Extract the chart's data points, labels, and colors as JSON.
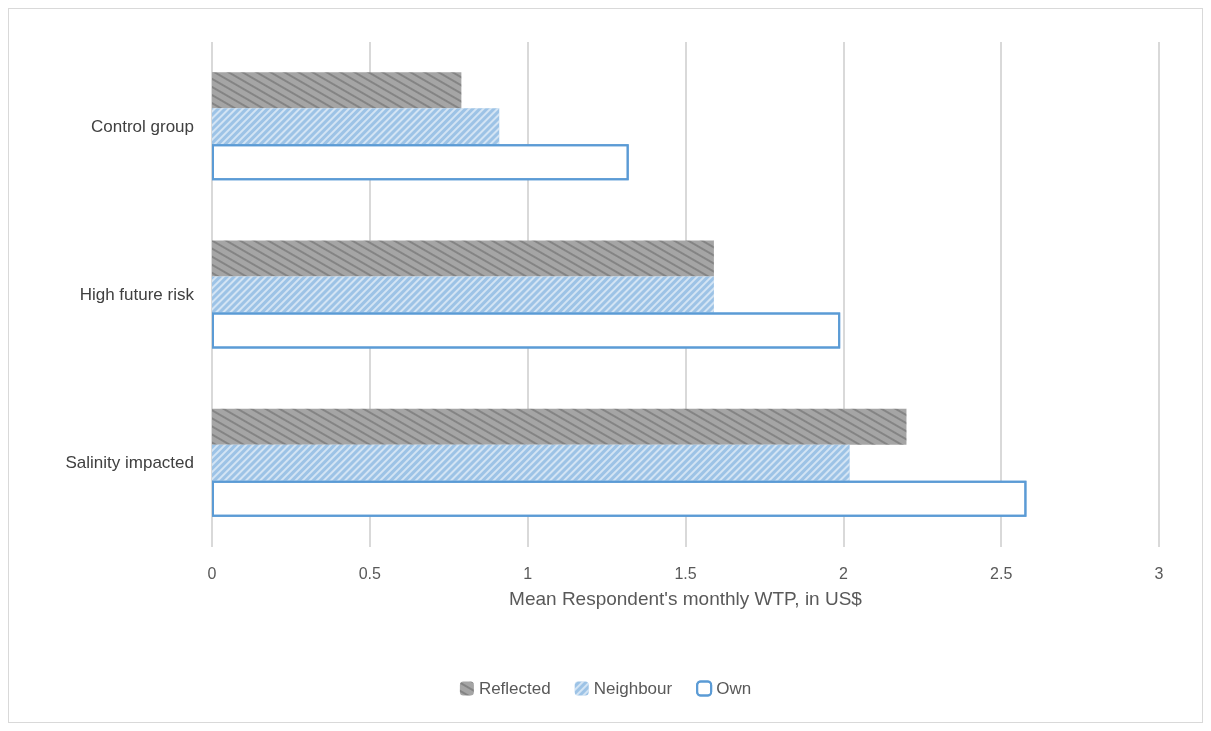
{
  "chart_data": {
    "type": "bar",
    "orientation": "horizontal",
    "xlabel": "Mean Respondent's monthly WTP, in US$",
    "categories": [
      "Control group",
      "High future risk",
      "Salinity impacted"
    ],
    "series": [
      {
        "name": "Reflected",
        "color": "#a5a5a5",
        "values": [
          0.79,
          1.59,
          2.2
        ]
      },
      {
        "name": "Neighbour",
        "color": "#9dc3e6",
        "values": [
          0.91,
          1.59,
          2.02
        ]
      },
      {
        "name": "Own",
        "color": "#5b9bd5",
        "values": [
          1.32,
          1.99,
          2.58
        ]
      }
    ],
    "xlim": [
      0,
      3
    ],
    "xticks": [
      0,
      0.5,
      1,
      1.5,
      2,
      2.5,
      3
    ],
    "grid": "x",
    "legend": "bottom"
  }
}
